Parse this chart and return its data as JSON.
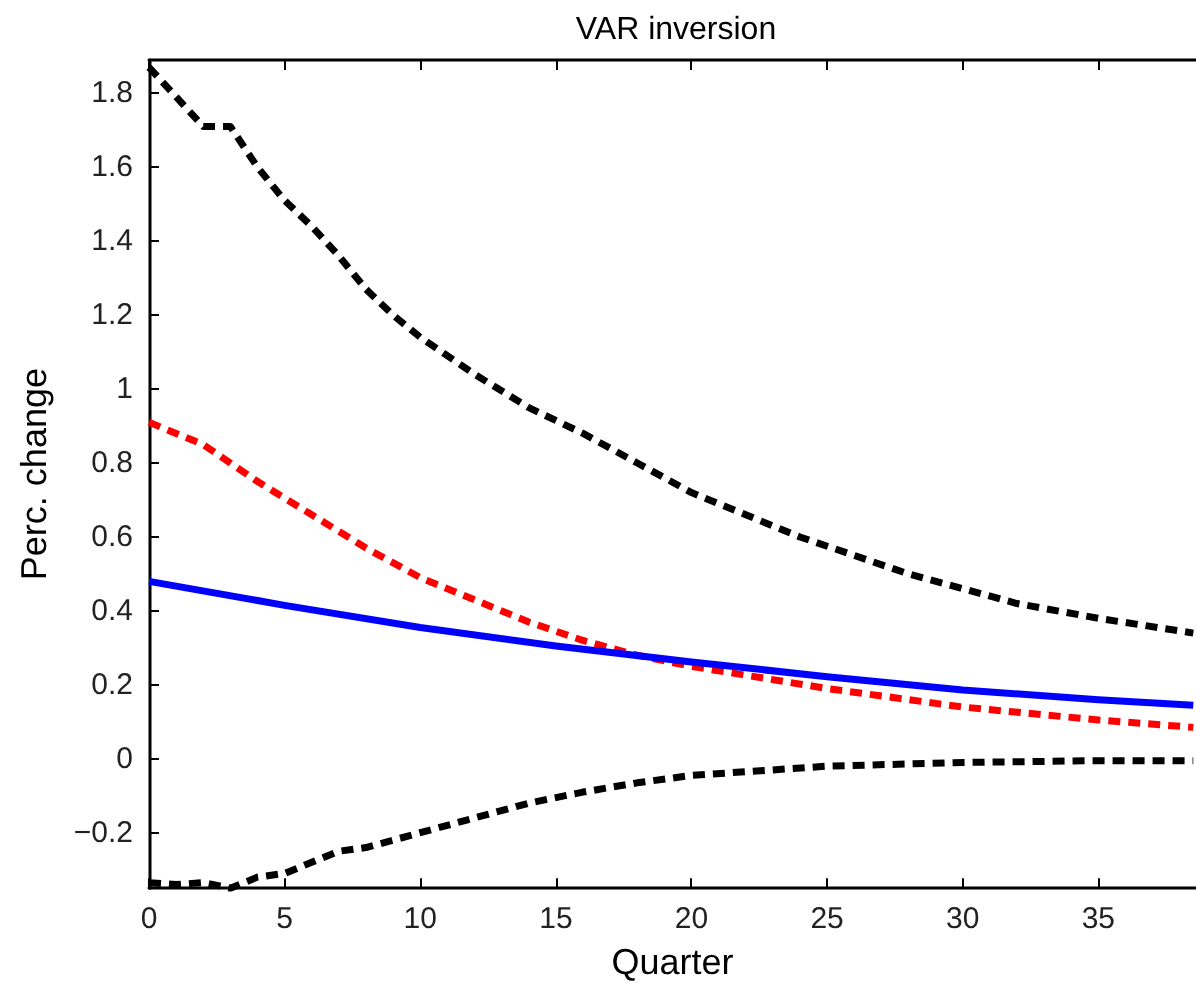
{
  "chart_data": {
    "type": "line",
    "title": "VAR inversion",
    "xlabel": "Quarter",
    "ylabel": "Perc. change",
    "xlim": [
      0,
      38.6
    ],
    "xticks": [
      0,
      5,
      10,
      15,
      20,
      25,
      30,
      35
    ],
    "ylim": [
      -0.35,
      1.89
    ],
    "yticks": [
      -0.2,
      0,
      0.2,
      0.4,
      0.6,
      0.8,
      1,
      1.2,
      1.4,
      1.6,
      1.8
    ],
    "marker": "none",
    "series": [
      {
        "color": "#000000",
        "line_style": "dashed",
        "x": [
          0,
          1,
          2,
          3,
          4,
          5,
          6,
          7,
          8,
          9,
          10,
          12,
          14,
          16,
          18,
          20,
          22,
          24,
          26,
          28,
          30,
          32,
          35,
          38.5
        ],
        "values": [
          1.87,
          1.79,
          1.71,
          1.71,
          1.6,
          1.51,
          1.44,
          1.36,
          1.27,
          1.2,
          1.14,
          1.04,
          0.95,
          0.88,
          0.8,
          0.72,
          0.66,
          0.6,
          0.55,
          0.5,
          0.46,
          0.42,
          0.38,
          0.34
        ]
      },
      {
        "color": "#ff0000",
        "line_style": "dashed",
        "x": [
          0,
          2,
          4,
          6,
          8,
          10,
          12,
          14,
          16,
          18,
          20,
          25,
          30,
          35,
          38.5
        ],
        "values": [
          0.91,
          0.85,
          0.75,
          0.66,
          0.57,
          0.49,
          0.43,
          0.37,
          0.32,
          0.28,
          0.25,
          0.19,
          0.14,
          0.105,
          0.085
        ]
      },
      {
        "color": "#0000ff",
        "line_style": "solid",
        "x": [
          0,
          5,
          10,
          15,
          20,
          25,
          30,
          35,
          38.5
        ],
        "values": [
          0.48,
          0.415,
          0.355,
          0.305,
          0.262,
          0.222,
          0.186,
          0.16,
          0.145
        ]
      },
      {
        "color": "#000000",
        "line_style": "dashed",
        "x": [
          0,
          1,
          2,
          3,
          4,
          5,
          6,
          7,
          8,
          10,
          12,
          14,
          16,
          18,
          20,
          25,
          30,
          35,
          38.5
        ],
        "values": [
          -0.335,
          -0.34,
          -0.335,
          -0.35,
          -0.32,
          -0.31,
          -0.28,
          -0.25,
          -0.24,
          -0.2,
          -0.16,
          -0.12,
          -0.09,
          -0.065,
          -0.045,
          -0.02,
          -0.01,
          -0.005,
          -0.005
        ]
      }
    ]
  }
}
